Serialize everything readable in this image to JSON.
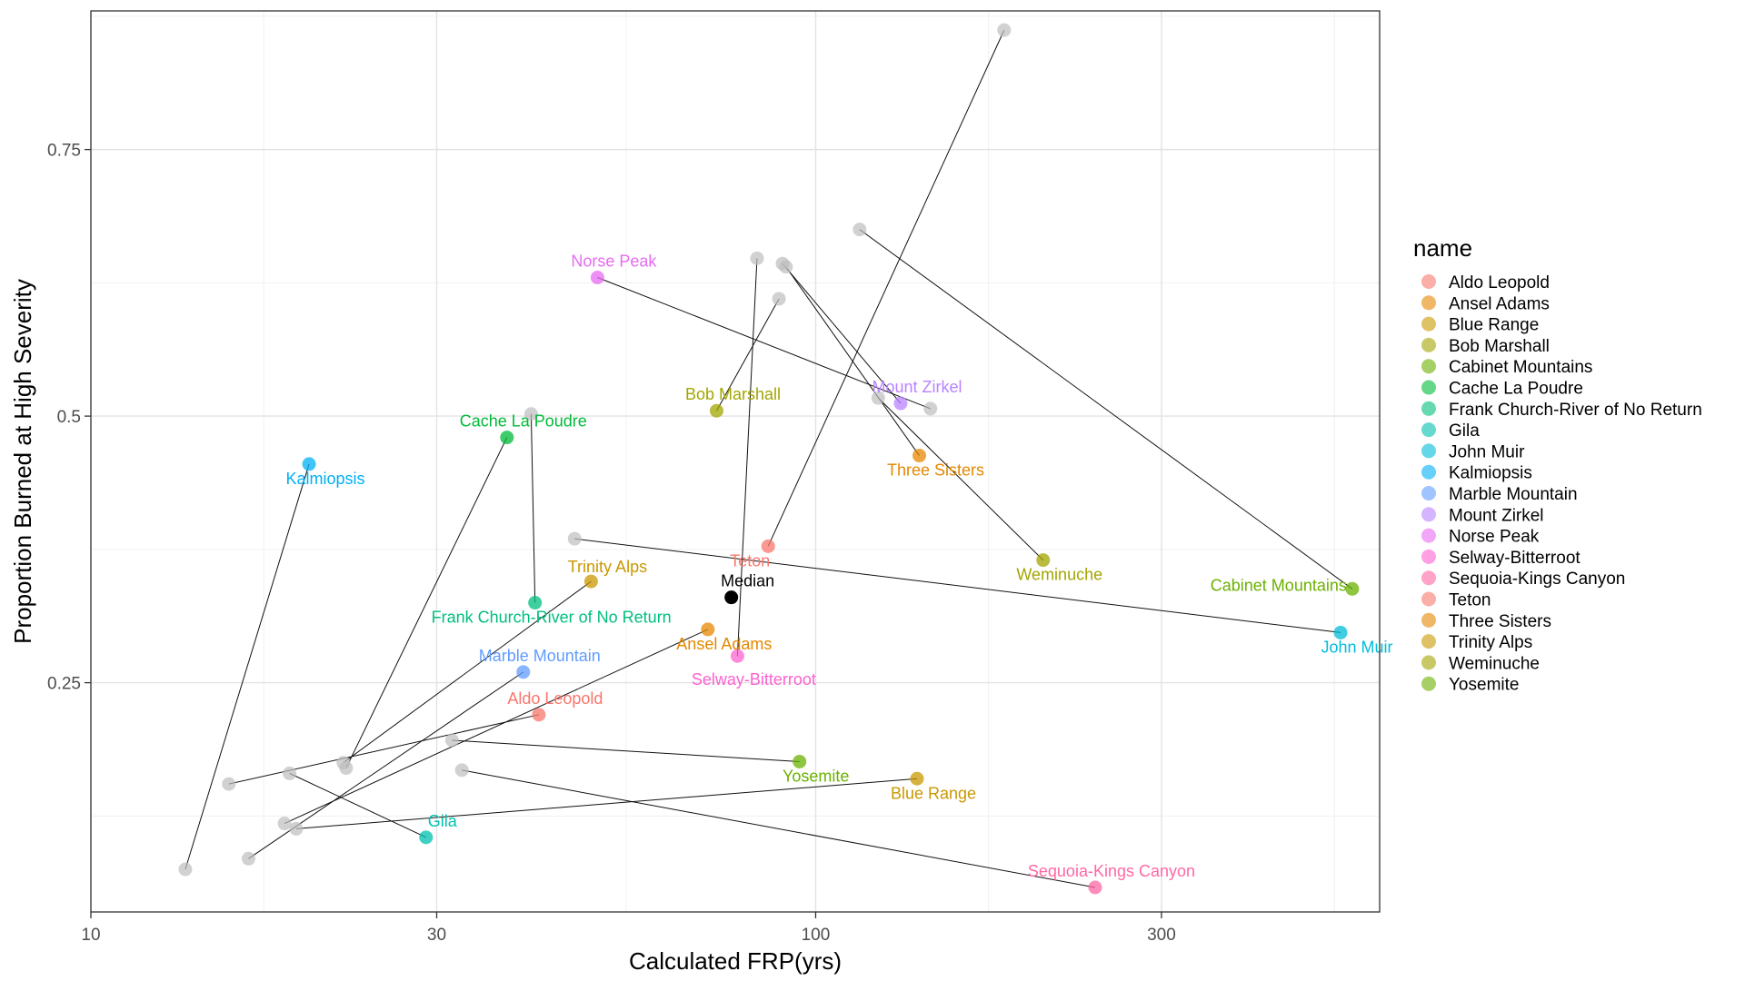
{
  "chart_data": {
    "type": "scatter",
    "title": "",
    "xlabel": "Calculated FRP(yrs)",
    "ylabel": "Proportion Burned at High Severity",
    "x_scale": "log10",
    "xlim": [
      10,
      600
    ],
    "ylim": [
      0.035,
      0.88
    ],
    "x_ticks": [
      10,
      30,
      100,
      300
    ],
    "y_ticks": [
      0.25,
      0.5,
      0.75
    ],
    "grid": true,
    "legend": {
      "title": "name",
      "position": "right"
    },
    "series": [
      {
        "name": "Aldo Leopold",
        "color": "#F8766D",
        "point": {
          "x": 41.5,
          "y": 0.22
        },
        "reference": {
          "x": 15.5,
          "y": 0.155
        },
        "label": "Aldo Leopold"
      },
      {
        "name": "Ansel Adams",
        "color": "#E58700",
        "point": {
          "x": 71,
          "y": 0.3
        },
        "reference": {
          "x": 18.5,
          "y": 0.118
        },
        "label": "Ansel Adams"
      },
      {
        "name": "Blue Range",
        "color": "#C99800",
        "point": {
          "x": 138,
          "y": 0.16
        },
        "reference": {
          "x": 19.2,
          "y": 0.113
        },
        "label": "Blue Range"
      },
      {
        "name": "Bob Marshall",
        "color": "#A3A500",
        "point": {
          "x": 73,
          "y": 0.505
        },
        "reference": {
          "x": 89,
          "y": 0.61
        },
        "label": "Bob Marshall"
      },
      {
        "name": "Cabinet Mountains",
        "color": "#6BB100",
        "point": {
          "x": 550,
          "y": 0.338
        },
        "reference": {
          "x": 115,
          "y": 0.675
        },
        "label": "Cabinet Mountains"
      },
      {
        "name": "Cache La Poudre",
        "color": "#00BA38",
        "point": {
          "x": 37.5,
          "y": 0.48
        },
        "reference": {
          "x": 22.5,
          "y": 0.17
        },
        "label": "Cache La Poudre"
      },
      {
        "name": "Frank Church-River of No Return",
        "color": "#00BF7D",
        "point": {
          "x": 41,
          "y": 0.325
        },
        "reference": {
          "x": 40.5,
          "y": 0.502
        },
        "label": "Frank Church-River of No Return"
      },
      {
        "name": "Gila",
        "color": "#00C0AF",
        "point": {
          "x": 29,
          "y": 0.105
        },
        "reference": {
          "x": 18.8,
          "y": 0.165
        },
        "label": "Gila"
      },
      {
        "name": "John Muir",
        "color": "#00BCD8",
        "point": {
          "x": 530,
          "y": 0.297
        },
        "reference": {
          "x": 46.5,
          "y": 0.385
        },
        "label": "John Muir"
      },
      {
        "name": "Kalmiopsis",
        "color": "#00B0F6",
        "point": {
          "x": 20,
          "y": 0.455
        },
        "reference": {
          "x": 13.5,
          "y": 0.075
        },
        "label": "Kalmiopsis"
      },
      {
        "name": "Marble Mountain",
        "color": "#619CFF",
        "point": {
          "x": 39.5,
          "y": 0.26
        },
        "reference": {
          "x": 16.5,
          "y": 0.085
        },
        "label": "Marble Mountain"
      },
      {
        "name": "Mount Zirkel",
        "color": "#B983FF",
        "point": {
          "x": 131,
          "y": 0.512
        },
        "reference": {
          "x": 90,
          "y": 0.643
        },
        "label": "Mount Zirkel"
      },
      {
        "name": "Norse Peak",
        "color": "#E76BF3",
        "point": {
          "x": 50,
          "y": 0.63
        },
        "reference": {
          "x": 144,
          "y": 0.507
        },
        "label": "Norse Peak"
      },
      {
        "name": "Selway-Bitterroot",
        "color": "#FD61D1",
        "point": {
          "x": 78,
          "y": 0.275
        },
        "reference": {
          "x": 83,
          "y": 0.648
        },
        "label": "Selway-Bitterroot"
      },
      {
        "name": "Sequoia-Kings Canyon",
        "color": "#FF67A4",
        "point": {
          "x": 243,
          "y": 0.058
        },
        "reference": {
          "x": 32.5,
          "y": 0.168
        },
        "label": "Sequoia-Kings Canyon"
      },
      {
        "name": "Teton",
        "color": "#F8766D",
        "point": {
          "x": 86,
          "y": 0.378
        },
        "reference": {
          "x": 182,
          "y": 0.862
        },
        "label": "Teton"
      },
      {
        "name": "Three Sisters",
        "color": "#E58700",
        "point": {
          "x": 139,
          "y": 0.463
        },
        "reference": {
          "x": 91,
          "y": 0.64
        },
        "label": "Three Sisters"
      },
      {
        "name": "Trinity Alps",
        "color": "#C99800",
        "point": {
          "x": 49,
          "y": 0.345
        },
        "reference": {
          "x": 22.3,
          "y": 0.175
        },
        "label": "Trinity Alps"
      },
      {
        "name": "Weminuche",
        "color": "#A3A500",
        "point": {
          "x": 206,
          "y": 0.365
        },
        "reference": {
          "x": 122,
          "y": 0.517
        },
        "label": "Weminuche"
      },
      {
        "name": "Yosemite",
        "color": "#6BB100",
        "point": {
          "x": 95,
          "y": 0.176
        },
        "reference": {
          "x": 31.5,
          "y": 0.196
        },
        "label": "Yosemite"
      }
    ],
    "median": {
      "label": "Median",
      "x": 76.5,
      "y": 0.33,
      "color": "#000000"
    }
  }
}
